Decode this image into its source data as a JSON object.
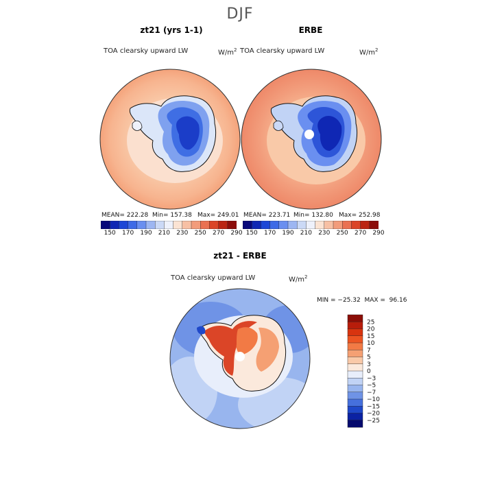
{
  "season": "DJF",
  "panels": [
    {
      "title": "zt21 (yrs 1-1)",
      "variable": "TOA clearsky upward LW",
      "units": "W/m",
      "units_sup": "2",
      "mean": "MEAN= 222.28",
      "min": "Min= 157.38",
      "max": "Max= 249.01"
    },
    {
      "title": "ERBE",
      "variable": "TOA clearsky upward LW",
      "units": "W/m",
      "units_sup": "2",
      "mean": "MEAN= 223.71",
      "min": "Min= 132.80",
      "max": "Max= 252.98"
    }
  ],
  "colorbar_top": {
    "ticks": [
      "150",
      "170",
      "190",
      "210",
      "230",
      "250",
      "270",
      "290"
    ],
    "colors": [
      "#08087a",
      "#0f27b4",
      "#1d47d6",
      "#3e6ae6",
      "#6a8ff0",
      "#9db6f2",
      "#cbd9f6",
      "#eef1fb",
      "#fbe3d3",
      "#f7c0a4",
      "#f29c7b",
      "#ea7152",
      "#db4527",
      "#bb2412",
      "#8c0d0a"
    ]
  },
  "diff": {
    "title": "zt21 - ERBE",
    "variable": "TOA clearsky upward LW",
    "units": "W/m",
    "units_sup": "2",
    "stats": "MIN = −25.32  MAX =  96.16",
    "levels": [
      "25",
      "20",
      "15",
      "10",
      "7",
      "5",
      "3",
      "0",
      "−3",
      "−5",
      "−7",
      "−10",
      "−15",
      "−20",
      "−25"
    ],
    "colors": [
      "#8b0e07",
      "#b81d0b",
      "#d8340f",
      "#ec5422",
      "#f27a45",
      "#f5a073",
      "#f9c9a8",
      "#fbe9dc",
      "#e8eefb",
      "#c1d3f5",
      "#98b5ee",
      "#6f93e6",
      "#4670dd",
      "#1f48c9",
      "#0b22a3",
      "#050a6e"
    ]
  },
  "chart_data": [
    {
      "type": "heatmap",
      "title": "zt21 (yrs 1-1)",
      "subtitle": "TOA clearsky upward LW",
      "units": "W/m2",
      "projection": "south polar stereographic",
      "mean": 222.28,
      "min": 157.38,
      "max": 249.01,
      "levels": [
        150,
        160,
        170,
        180,
        190,
        200,
        210,
        220,
        230,
        240,
        250,
        260,
        270,
        280,
        290
      ]
    },
    {
      "type": "heatmap",
      "title": "ERBE",
      "subtitle": "TOA clearsky upward LW",
      "units": "W/m2",
      "projection": "south polar stereographic",
      "mean": 223.71,
      "min": 132.8,
      "max": 252.98,
      "levels": [
        150,
        160,
        170,
        180,
        190,
        200,
        210,
        220,
        230,
        240,
        250,
        260,
        270,
        280,
        290
      ]
    },
    {
      "type": "heatmap",
      "title": "zt21 - ERBE",
      "subtitle": "TOA clearsky upward LW",
      "units": "W/m2",
      "projection": "south polar stereographic",
      "min": -25.32,
      "max": 96.16,
      "levels": [
        -25,
        -20,
        -15,
        -10,
        -7,
        -5,
        -3,
        0,
        3,
        5,
        7,
        10,
        15,
        20,
        25
      ]
    }
  ]
}
